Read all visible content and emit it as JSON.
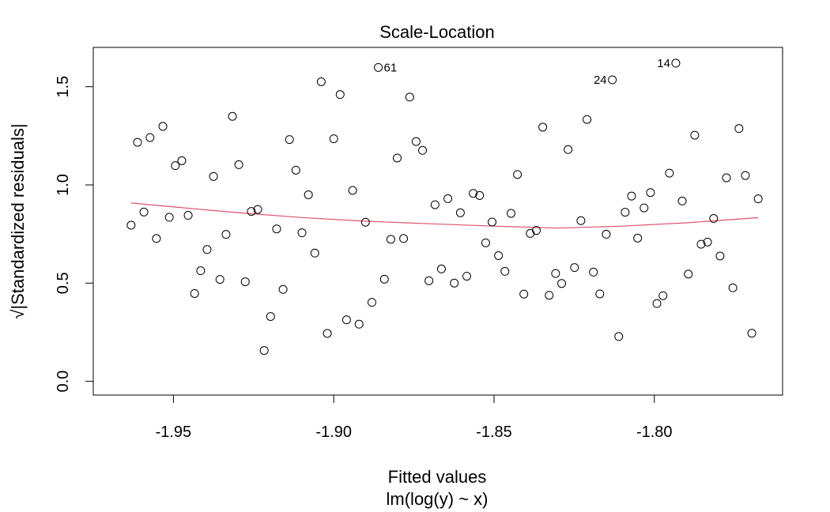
{
  "chart_data": {
    "type": "scatter",
    "title": "Scale-Location",
    "xlabel": "Fitted values",
    "xsublabel": "lm(log(y) ~ x)",
    "ylabel": "√|Standardized residuals|",
    "xlim": [
      -1.975,
      -1.76
    ],
    "ylim": [
      -0.07,
      1.7
    ],
    "xticks": [
      -1.95,
      -1.9,
      -1.85,
      -1.8
    ],
    "xtick_labels": [
      "-1.95",
      "-1.90",
      "-1.85",
      "-1.80"
    ],
    "yticks": [
      0.0,
      0.5,
      1.0,
      1.5
    ],
    "ytick_labels": [
      "0.0",
      "0.5",
      "1.0",
      "1.5"
    ],
    "grid": false,
    "smooth_color": "#DF536B",
    "points": [
      {
        "x": -1.9632,
        "y": 0.795
      },
      {
        "x": -1.9612,
        "y": 1.217
      },
      {
        "x": -1.9592,
        "y": 0.862
      },
      {
        "x": -1.9573,
        "y": 1.241
      },
      {
        "x": -1.9553,
        "y": 0.727
      },
      {
        "x": -1.9533,
        "y": 1.298
      },
      {
        "x": -1.9513,
        "y": 0.835
      },
      {
        "x": -1.9494,
        "y": 1.098
      },
      {
        "x": -1.9474,
        "y": 1.123
      },
      {
        "x": -1.9454,
        "y": 0.845
      },
      {
        "x": -1.9434,
        "y": 0.447
      },
      {
        "x": -1.9415,
        "y": 0.563
      },
      {
        "x": -1.9395,
        "y": 0.671
      },
      {
        "x": -1.9375,
        "y": 1.043
      },
      {
        "x": -1.9355,
        "y": 0.519
      },
      {
        "x": -1.9336,
        "y": 0.748
      },
      {
        "x": -1.9316,
        "y": 1.349
      },
      {
        "x": -1.9296,
        "y": 1.103
      },
      {
        "x": -1.9276,
        "y": 0.507
      },
      {
        "x": -1.9257,
        "y": 0.865
      },
      {
        "x": -1.9237,
        "y": 0.875
      },
      {
        "x": -1.9217,
        "y": 0.157
      },
      {
        "x": -1.9197,
        "y": 0.33
      },
      {
        "x": -1.9178,
        "y": 0.776
      },
      {
        "x": -1.9158,
        "y": 0.468
      },
      {
        "x": -1.9138,
        "y": 1.231
      },
      {
        "x": -1.9118,
        "y": 1.075
      },
      {
        "x": -1.9099,
        "y": 0.756
      },
      {
        "x": -1.9079,
        "y": 0.95
      },
      {
        "x": -1.9059,
        "y": 0.653
      },
      {
        "x": -1.9039,
        "y": 1.525
      },
      {
        "x": -1.902,
        "y": 0.244
      },
      {
        "x": -1.9,
        "y": 1.235
      },
      {
        "x": -1.898,
        "y": 1.46
      },
      {
        "x": -1.896,
        "y": 0.313
      },
      {
        "x": -1.8941,
        "y": 0.972
      },
      {
        "x": -1.8921,
        "y": 0.291
      },
      {
        "x": -1.8901,
        "y": 0.81
      },
      {
        "x": -1.8881,
        "y": 0.402
      },
      {
        "x": -1.8861,
        "y": 1.598,
        "label": "61"
      },
      {
        "x": -1.8842,
        "y": 0.52
      },
      {
        "x": -1.8822,
        "y": 0.723
      },
      {
        "x": -1.8802,
        "y": 1.137
      },
      {
        "x": -1.8782,
        "y": 0.727
      },
      {
        "x": -1.8763,
        "y": 1.447
      },
      {
        "x": -1.8743,
        "y": 1.221
      },
      {
        "x": -1.8723,
        "y": 1.176
      },
      {
        "x": -1.8703,
        "y": 0.512
      },
      {
        "x": -1.8684,
        "y": 0.899
      },
      {
        "x": -1.8664,
        "y": 0.572
      },
      {
        "x": -1.8644,
        "y": 0.93
      },
      {
        "x": -1.8624,
        "y": 0.5
      },
      {
        "x": -1.8605,
        "y": 0.858
      },
      {
        "x": -1.8585,
        "y": 0.535
      },
      {
        "x": -1.8565,
        "y": 0.957
      },
      {
        "x": -1.8545,
        "y": 0.946
      },
      {
        "x": -1.8526,
        "y": 0.705
      },
      {
        "x": -1.8506,
        "y": 0.811
      },
      {
        "x": -1.8486,
        "y": 0.64
      },
      {
        "x": -1.8466,
        "y": 0.56
      },
      {
        "x": -1.8447,
        "y": 0.855
      },
      {
        "x": -1.8427,
        "y": 1.053
      },
      {
        "x": -1.8407,
        "y": 0.444
      },
      {
        "x": -1.8387,
        "y": 0.753
      },
      {
        "x": -1.8368,
        "y": 0.768
      },
      {
        "x": -1.8348,
        "y": 1.294
      },
      {
        "x": -1.8328,
        "y": 0.438
      },
      {
        "x": -1.8308,
        "y": 0.549
      },
      {
        "x": -1.8289,
        "y": 0.498
      },
      {
        "x": -1.8269,
        "y": 1.18
      },
      {
        "x": -1.8249,
        "y": 0.579
      },
      {
        "x": -1.8229,
        "y": 0.818
      },
      {
        "x": -1.821,
        "y": 1.333
      },
      {
        "x": -1.819,
        "y": 0.556
      },
      {
        "x": -1.817,
        "y": 0.445
      },
      {
        "x": -1.815,
        "y": 0.749
      },
      {
        "x": -1.8131,
        "y": 1.535,
        "label": "24"
      },
      {
        "x": -1.8111,
        "y": 0.228
      },
      {
        "x": -1.8091,
        "y": 0.861
      },
      {
        "x": -1.8071,
        "y": 0.943
      },
      {
        "x": -1.8052,
        "y": 0.729
      },
      {
        "x": -1.8032,
        "y": 0.883
      },
      {
        "x": -1.8012,
        "y": 0.961
      },
      {
        "x": -1.7992,
        "y": 0.396
      },
      {
        "x": -1.7973,
        "y": 0.436
      },
      {
        "x": -1.7953,
        "y": 1.06
      },
      {
        "x": -1.7933,
        "y": 1.62,
        "label": "14"
      },
      {
        "x": -1.7913,
        "y": 0.918
      },
      {
        "x": -1.7894,
        "y": 0.546
      },
      {
        "x": -1.7874,
        "y": 1.253
      },
      {
        "x": -1.7854,
        "y": 0.698
      },
      {
        "x": -1.7834,
        "y": 0.709
      },
      {
        "x": -1.7815,
        "y": 0.829
      },
      {
        "x": -1.7795,
        "y": 0.638
      },
      {
        "x": -1.7775,
        "y": 1.036
      },
      {
        "x": -1.7755,
        "y": 0.476
      },
      {
        "x": -1.7736,
        "y": 1.287
      },
      {
        "x": -1.7716,
        "y": 1.048
      },
      {
        "x": -1.7696,
        "y": 0.245
      },
      {
        "x": -1.7676,
        "y": 0.929
      }
    ],
    "smooth": [
      {
        "x": -1.9632,
        "y": 0.908
      },
      {
        "x": -1.95,
        "y": 0.888
      },
      {
        "x": -1.93,
        "y": 0.859
      },
      {
        "x": -1.91,
        "y": 0.834
      },
      {
        "x": -1.89,
        "y": 0.815
      },
      {
        "x": -1.87,
        "y": 0.802
      },
      {
        "x": -1.85,
        "y": 0.79
      },
      {
        "x": -1.83,
        "y": 0.78
      },
      {
        "x": -1.81,
        "y": 0.79
      },
      {
        "x": -1.79,
        "y": 0.807
      },
      {
        "x": -1.7676,
        "y": 0.833
      }
    ]
  }
}
